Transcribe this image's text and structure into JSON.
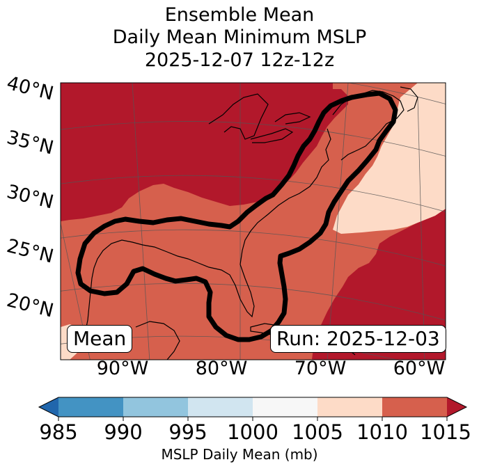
{
  "title": {
    "line1": "Ensemble Mean",
    "line2": "Daily Mean Minimum MSLP",
    "line3": "2025-12-07 12z-12z"
  },
  "map": {
    "latitude_labels": [
      "40°N",
      "35°N",
      "30°N",
      "25°N",
      "20°N"
    ],
    "longitude_labels": [
      "90°W",
      "80°W",
      "70°W",
      "60°W"
    ],
    "mean_label": "Mean",
    "run_label": "Run: 2025-12-03"
  },
  "colorbar": {
    "ticks": [
      "985",
      "990",
      "995",
      "1000",
      "1005",
      "1010",
      "1015"
    ],
    "label": "MSLP Daily Mean (mb)",
    "colors": {
      "under": "#2166ac",
      "b985_990": "#4393c3",
      "b990_995": "#92c5de",
      "b995_1000": "#d1e5f0",
      "b1000_1005": "#f7f7f7",
      "b1005_1010": "#fddbc7",
      "b1010_1015": "#d6604d",
      "over": "#b2182b"
    }
  }
}
